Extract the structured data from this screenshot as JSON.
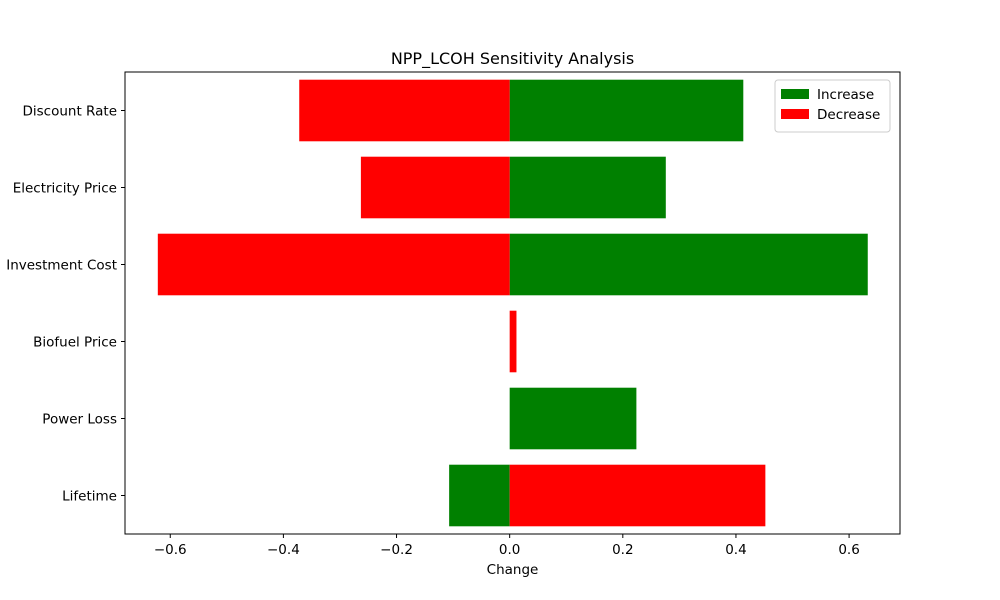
{
  "chart_data": {
    "type": "bar",
    "orientation": "horizontal",
    "title": "NPP_LCOH Sensitivity Analysis",
    "xlabel": "Change",
    "ylabel": "",
    "xlim": [
      -0.68,
      0.69
    ],
    "xticks": [
      -0.6,
      -0.4,
      -0.2,
      0.0,
      0.2,
      0.4,
      0.6
    ],
    "xtick_labels": [
      "−0.6",
      "−0.4",
      "−0.2",
      "0.0",
      "0.2",
      "0.4",
      "0.6"
    ],
    "categories": [
      "Discount Rate",
      "Electricity Price",
      "Investment Cost",
      "Biofuel Price",
      "Power Loss",
      "Lifetime"
    ],
    "series": [
      {
        "name": "Increase",
        "color": "#008000",
        "values": [
          0.413,
          0.276,
          0.633,
          0.0,
          0.224,
          -0.107
        ]
      },
      {
        "name": "Decrease",
        "color": "#ff0000",
        "values": [
          -0.372,
          -0.263,
          -0.622,
          0.012,
          0.0,
          0.452
        ]
      }
    ],
    "legend": "top-right",
    "grid": false
  }
}
